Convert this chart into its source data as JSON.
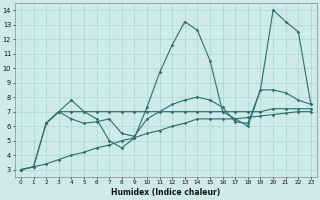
{
  "background_color": "#ceeaea",
  "grid_color": "#aed4d4",
  "line_color": "#2d6e6e",
  "xlabel": "Humidex (Indice chaleur)",
  "xlim": [
    -0.5,
    23.5
  ],
  "ylim": [
    2.5,
    14.5
  ],
  "xticks": [
    0,
    1,
    2,
    3,
    4,
    5,
    6,
    7,
    8,
    9,
    10,
    11,
    12,
    13,
    14,
    15,
    16,
    17,
    18,
    19,
    20,
    21,
    22,
    23
  ],
  "yticks": [
    3,
    4,
    5,
    6,
    7,
    8,
    9,
    10,
    11,
    12,
    13,
    14
  ],
  "lines": [
    {
      "x": [
        0,
        1,
        2,
        3,
        4,
        5,
        6,
        7,
        8,
        9,
        10,
        11,
        12,
        13,
        14,
        15,
        16,
        17,
        18,
        19,
        20,
        21,
        22,
        23
      ],
      "y": [
        3.0,
        3.2,
        6.2,
        7.0,
        7.8,
        7.0,
        6.5,
        5.0,
        4.5,
        5.2,
        7.3,
        9.7,
        11.6,
        13.2,
        12.6,
        10.5,
        7.0,
        6.5,
        6.0,
        8.5,
        14.0,
        13.2,
        12.5,
        7.5
      ]
    },
    {
      "x": [
        0,
        1,
        2,
        3,
        4,
        5,
        6,
        7,
        8,
        9,
        10,
        11,
        12,
        13,
        14,
        15,
        16,
        17,
        18,
        19,
        20,
        21,
        22,
        23
      ],
      "y": [
        3.0,
        3.2,
        6.2,
        7.0,
        7.0,
        7.0,
        7.0,
        7.0,
        7.0,
        7.0,
        7.0,
        7.0,
        7.0,
        7.0,
        7.0,
        7.0,
        7.0,
        7.0,
        7.0,
        7.0,
        7.2,
        7.2,
        7.2,
        7.2
      ]
    },
    {
      "x": [
        2,
        3,
        4,
        5,
        6,
        7,
        8,
        9,
        10,
        11,
        12,
        13,
        14,
        15,
        16,
        17,
        18,
        19,
        20,
        21,
        22,
        23
      ],
      "y": [
        6.2,
        7.0,
        6.5,
        6.2,
        6.3,
        6.5,
        5.5,
        5.3,
        6.5,
        7.0,
        7.5,
        7.8,
        8.0,
        7.8,
        7.3,
        6.3,
        6.2,
        8.5,
        8.5,
        8.3,
        7.8,
        7.5
      ]
    },
    {
      "x": [
        0,
        1,
        2,
        3,
        4,
        5,
        6,
        7,
        8,
        9,
        10,
        11,
        12,
        13,
        14,
        15,
        16,
        17,
        18,
        19,
        20,
        21,
        22,
        23
      ],
      "y": [
        3.0,
        3.2,
        3.4,
        3.7,
        4.0,
        4.2,
        4.5,
        4.7,
        5.0,
        5.2,
        5.5,
        5.7,
        6.0,
        6.2,
        6.5,
        6.5,
        6.5,
        6.5,
        6.6,
        6.7,
        6.8,
        6.9,
        7.0,
        7.0
      ]
    }
  ]
}
